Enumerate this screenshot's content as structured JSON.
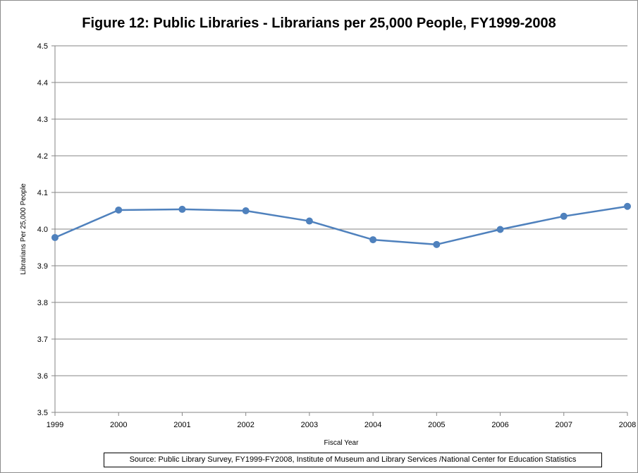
{
  "chart_data": {
    "type": "line",
    "title": "Figure 12: Public Libraries - Librarians per 25,000 People, FY1999-2008",
    "xlabel": "Fiscal Year",
    "ylabel": "Librarians Per 25,000 People",
    "categories": [
      "1999",
      "2000",
      "2001",
      "2002",
      "2003",
      "2004",
      "2005",
      "2006",
      "2007",
      "2008"
    ],
    "series": [
      {
        "values": [
          3.977,
          4.052,
          4.054,
          4.05,
          4.022,
          3.971,
          3.958,
          3.999,
          4.035,
          4.062
        ]
      }
    ],
    "ylim": [
      3.5,
      4.5
    ],
    "yticks": [
      "3.5",
      "3.6",
      "3.7",
      "3.8",
      "3.9",
      "4.0",
      "4.1",
      "4.2",
      "4.3",
      "4.4",
      "4.5"
    ],
    "grid": true,
    "legend": "none",
    "line_color": "#4f81bd"
  },
  "source_note": "Source: Public Library Survey, FY1999-FY2008, Institute  of Museum and Library Services /National Center for Education Statistics"
}
